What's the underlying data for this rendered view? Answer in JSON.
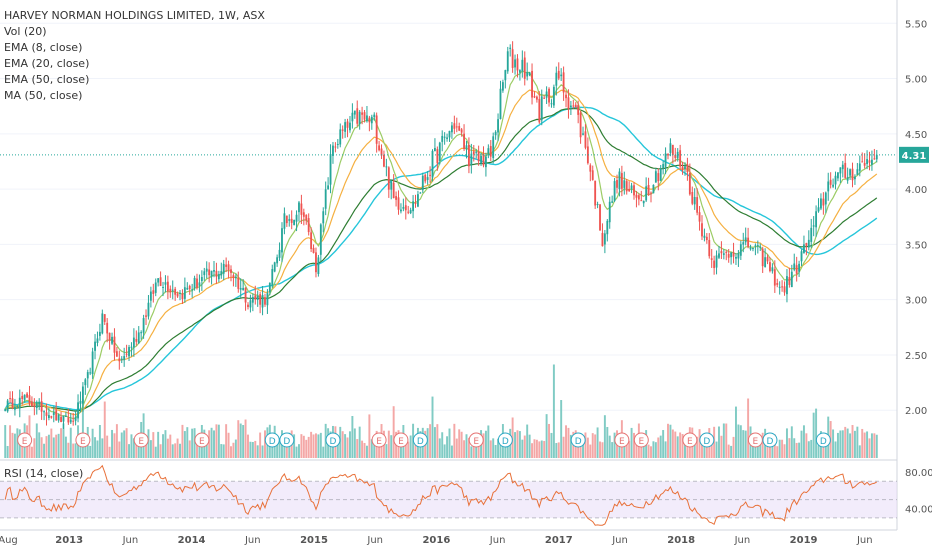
{
  "header": {
    "title": "HARVEY NORMAN HOLDINGS LIMITED, 1W, ASX",
    "studies": [
      "Vol (20)",
      "EMA (8, close)",
      "EMA (20, close)",
      "EMA (50, close)",
      "MA (50, close)"
    ],
    "rsi_label": "RSI (14, close)"
  },
  "colors": {
    "up": "#26a69a",
    "down": "#ef5350",
    "vol_up": "#80cbc4",
    "vol_down": "#f4a7a6",
    "ema8": "#9ccc65",
    "ema20": "#f5b041",
    "ema50": "#2e7d32",
    "ma50": "#26c6da",
    "rsi_line": "#e8713a",
    "rsi_band": "#e8dcf8",
    "dividend": "#2aa7c4",
    "earnings": "#e57373"
  },
  "chart_data": {
    "type": "candlestick",
    "price_axis": {
      "ticks": [
        "5.50",
        "5.00",
        "4.50",
        "4.00",
        "3.50",
        "3.00",
        "2.50",
        "2.00"
      ],
      "ylim": [
        1.55,
        5.62
      ]
    },
    "last_price_label": "4.31",
    "rsi_axis": {
      "ticks": [
        "80.00",
        "40.00"
      ],
      "ylim": [
        20,
        90
      ]
    },
    "time_axis": [
      "Aug",
      "2013",
      "Jun",
      "2014",
      "Jun",
      "2015",
      "Jun",
      "2016",
      "Jun",
      "2017",
      "Jun",
      "2018",
      "Jun",
      "2019",
      "Jun"
    ],
    "weeks": 360,
    "anchors": [
      {
        "w": 0,
        "v": 2.05
      },
      {
        "w": 8,
        "v": 2.1
      },
      {
        "w": 15,
        "v": 2.02
      },
      {
        "w": 22,
        "v": 1.92
      },
      {
        "w": 28,
        "v": 1.9
      },
      {
        "w": 34,
        "v": 2.3
      },
      {
        "w": 40,
        "v": 2.85
      },
      {
        "w": 47,
        "v": 2.42
      },
      {
        "w": 55,
        "v": 2.7
      },
      {
        "w": 63,
        "v": 3.2
      },
      {
        "w": 72,
        "v": 3.05
      },
      {
        "w": 82,
        "v": 3.2
      },
      {
        "w": 92,
        "v": 3.3
      },
      {
        "w": 100,
        "v": 3.0
      },
      {
        "w": 108,
        "v": 3.02
      },
      {
        "w": 115,
        "v": 3.7
      },
      {
        "w": 122,
        "v": 3.85
      },
      {
        "w": 128,
        "v": 3.3
      },
      {
        "w": 135,
        "v": 4.4
      },
      {
        "w": 145,
        "v": 4.65
      },
      {
        "w": 152,
        "v": 4.6
      },
      {
        "w": 160,
        "v": 3.9
      },
      {
        "w": 168,
        "v": 3.85
      },
      {
        "w": 176,
        "v": 4.25
      },
      {
        "w": 185,
        "v": 4.6
      },
      {
        "w": 192,
        "v": 4.25
      },
      {
        "w": 200,
        "v": 4.3
      },
      {
        "w": 207,
        "v": 5.2
      },
      {
        "w": 214,
        "v": 5.1
      },
      {
        "w": 220,
        "v": 4.7
      },
      {
        "w": 228,
        "v": 5.0
      },
      {
        "w": 235,
        "v": 4.7
      },
      {
        "w": 240,
        "v": 4.3
      },
      {
        "w": 246,
        "v": 3.55
      },
      {
        "w": 252,
        "v": 4.1
      },
      {
        "w": 260,
        "v": 3.9
      },
      {
        "w": 266,
        "v": 4.05
      },
      {
        "w": 274,
        "v": 4.35
      },
      {
        "w": 280,
        "v": 4.2
      },
      {
        "w": 286,
        "v": 3.7
      },
      {
        "w": 292,
        "v": 3.35
      },
      {
        "w": 300,
        "v": 3.45
      },
      {
        "w": 307,
        "v": 3.5
      },
      {
        "w": 313,
        "v": 3.35
      },
      {
        "w": 320,
        "v": 3.08
      },
      {
        "w": 326,
        "v": 3.3
      },
      {
        "w": 332,
        "v": 3.6
      },
      {
        "w": 340,
        "v": 4.1
      },
      {
        "w": 348,
        "v": 4.15
      },
      {
        "w": 355,
        "v": 4.25
      },
      {
        "w": 359,
        "v": 4.31
      }
    ],
    "events": [
      {
        "w": 8,
        "t": "E"
      },
      {
        "w": 32,
        "t": "E"
      },
      {
        "w": 56,
        "t": "E"
      },
      {
        "w": 81,
        "t": "E"
      },
      {
        "w": 110,
        "t": "D"
      },
      {
        "w": 116,
        "t": "D"
      },
      {
        "w": 135,
        "t": "D"
      },
      {
        "w": 154,
        "t": "E"
      },
      {
        "w": 163,
        "t": "E"
      },
      {
        "w": 171,
        "t": "D"
      },
      {
        "w": 194,
        "t": "E"
      },
      {
        "w": 206,
        "t": "D"
      },
      {
        "w": 236,
        "t": "D"
      },
      {
        "w": 254,
        "t": "E"
      },
      {
        "w": 262,
        "t": "E"
      },
      {
        "w": 282,
        "t": "E"
      },
      {
        "w": 289,
        "t": "D"
      },
      {
        "w": 309,
        "t": "E"
      },
      {
        "w": 315,
        "t": "D"
      },
      {
        "w": 337,
        "t": "D"
      }
    ]
  }
}
